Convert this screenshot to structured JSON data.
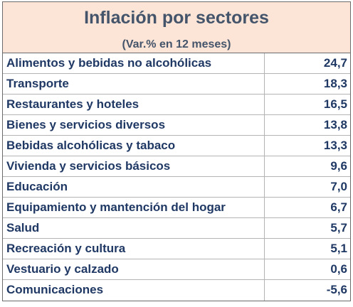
{
  "chart_data": {
    "type": "table",
    "title": "Inflación por sectores",
    "subtitle": "(Var.% en 12 meses)",
    "rows": [
      {
        "label": "Alimentos y bebidas no alcohólicas",
        "value": "24,7"
      },
      {
        "label": "Transporte",
        "value": "18,3"
      },
      {
        "label": "Restaurantes y hoteles",
        "value": "16,5"
      },
      {
        "label": "Bienes y servicios diversos",
        "value": "13,8"
      },
      {
        "label": "Bebidas alcohólicas y tabaco",
        "value": "13,3"
      },
      {
        "label": "Vivienda y servicios básicos",
        "value": "9,6"
      },
      {
        "label": "Educación",
        "value": "7,0"
      },
      {
        "label": "Equipamiento y mantención del hogar",
        "value": "6,7"
      },
      {
        "label": "Salud",
        "value": "5,7"
      },
      {
        "label": "Recreación y cultura",
        "value": "5,1"
      },
      {
        "label": "Vestuario y calzado",
        "value": "0,6"
      },
      {
        "label": "Comunicaciones",
        "value": "-5,6"
      }
    ]
  },
  "colors": {
    "header_bg": "#fce4d6",
    "title_text": "#44546a",
    "body_text": "#1f3864"
  }
}
